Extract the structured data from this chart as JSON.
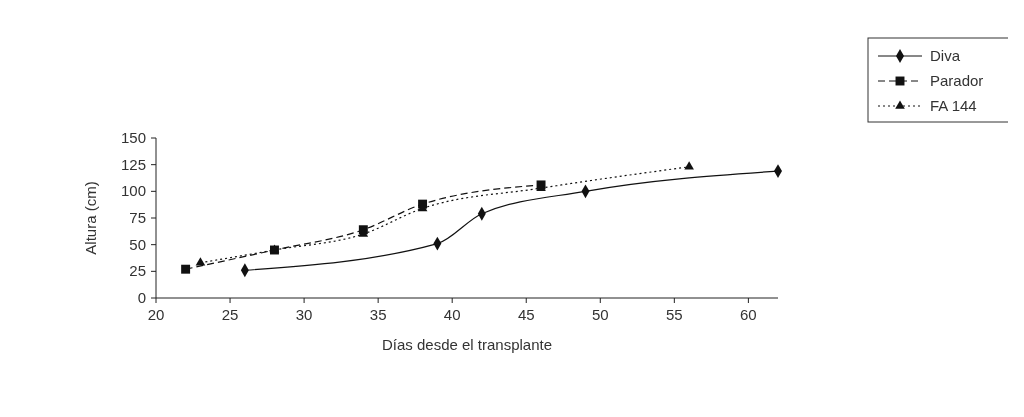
{
  "chart_data": {
    "type": "line",
    "xlabel": "Días desde el transplante",
    "ylabel": "Altura (cm)",
    "xlim": [
      20,
      62
    ],
    "xticks": [
      20,
      25,
      30,
      35,
      40,
      45,
      50,
      55,
      60
    ],
    "ylim": [
      0,
      150
    ],
    "yticks": [
      0,
      25,
      50,
      75,
      100,
      125,
      150
    ],
    "grid": false,
    "legend": "top right",
    "series": [
      {
        "name": "Diva",
        "color": "#111111",
        "marker": "diamond",
        "line_style": "solid",
        "x": [
          26,
          39,
          42,
          49,
          62
        ],
        "values": [
          26,
          51,
          79,
          100,
          119
        ]
      },
      {
        "name": "Parador",
        "color": "#111111",
        "marker": "square",
        "line_style": "dashed",
        "x": [
          22,
          28,
          34,
          38,
          46
        ],
        "values": [
          27,
          45,
          64,
          88,
          106
        ]
      },
      {
        "name": "FA 144",
        "color": "#111111",
        "marker": "triangle",
        "line_style": "dotted",
        "x": [
          23,
          28,
          34,
          38,
          46,
          56
        ],
        "values": [
          33,
          45,
          60,
          84,
          103,
          123
        ]
      }
    ]
  }
}
